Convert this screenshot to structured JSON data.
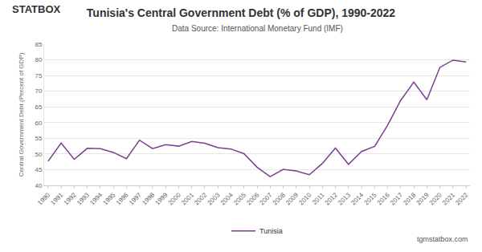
{
  "chart_data": {
    "type": "line",
    "title": "Tunisia's Central Government Debt (% of GDP), 1990-2022",
    "subtitle": "Data Source: International Monetary Fund (IMF)",
    "brand": "STATBOX",
    "footer": "tgmstatbox.com",
    "y_label": "Central Government Debt (Percent of GDP)",
    "categories": [
      "1990",
      "1991",
      "1992",
      "1993",
      "1994",
      "1995",
      "1996",
      "1997",
      "1998",
      "1999",
      "2000",
      "2001",
      "2002",
      "2003",
      "2004",
      "2005",
      "2006",
      "2007",
      "2008",
      "2009",
      "2010",
      "2011",
      "2012",
      "2013",
      "2014",
      "2015",
      "2016",
      "2017",
      "2018",
      "2019",
      "2020",
      "2021",
      "2022"
    ],
    "series": [
      {
        "name": "Tunisia",
        "color": "#7b3f8f",
        "values": [
          47.7,
          53.5,
          48.3,
          51.8,
          51.7,
          50.5,
          48.5,
          54.4,
          51.7,
          53.0,
          52.5,
          54.0,
          53.4,
          52.0,
          51.6,
          50.1,
          45.8,
          42.8,
          45.1,
          44.6,
          43.4,
          47.0,
          51.9,
          46.7,
          50.8,
          52.4,
          59.2,
          67.1,
          72.9,
          67.3,
          77.6,
          79.9,
          79.3
        ]
      }
    ],
    "ylim": [
      40,
      85
    ],
    "yticks": [
      40,
      45,
      50,
      55,
      60,
      65,
      70,
      75,
      80,
      85
    ],
    "grid": true,
    "legend": "bottom"
  }
}
